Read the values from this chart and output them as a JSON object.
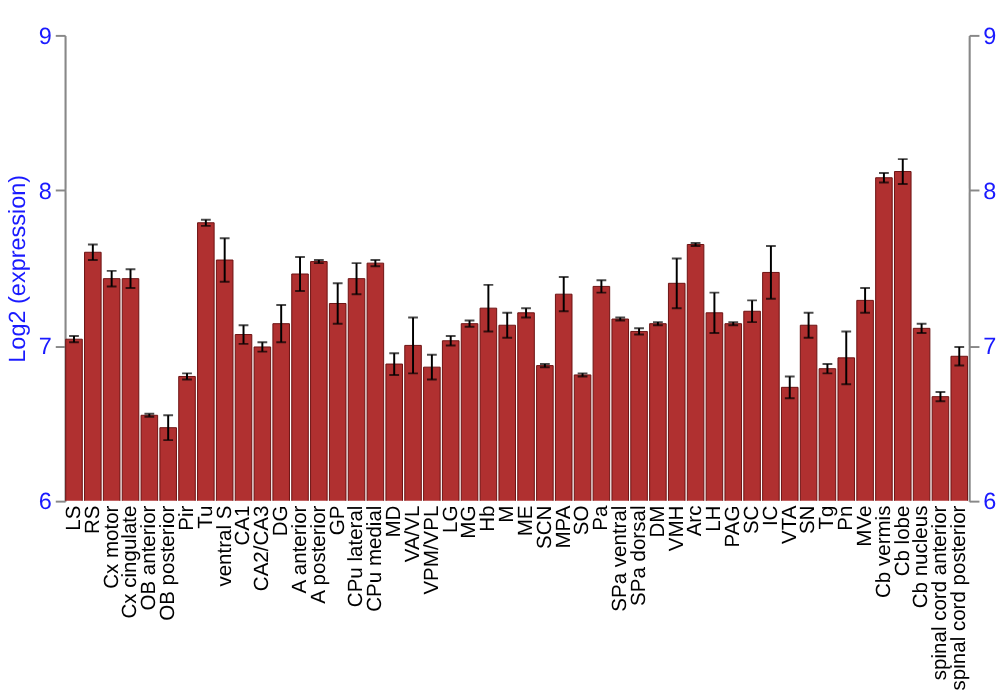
{
  "chart_data": {
    "type": "bar",
    "ylabel": "Log2 (expression)",
    "categories": [
      "LS",
      "RS",
      "Cx motor",
      "Cx cingulate",
      "OB anterior",
      "OB posterior",
      "Pir",
      "Tu",
      "ventral S",
      "CA1",
      "CA2/CA3",
      "DG",
      "A anterior",
      "A posterior",
      "GP",
      "CPu lateral",
      "CPu medial",
      "MD",
      "VA/VL",
      "VPM/VPL",
      "LG",
      "MG",
      "Hb",
      "M",
      "ME",
      "SCN",
      "MPA",
      "SO",
      "Pa",
      "SPa ventral",
      "SPa dorsal",
      "DM",
      "VMH",
      "Arc",
      "LH",
      "PAG",
      "SC",
      "IC",
      "VTA",
      "SN",
      "Tg",
      "Pn",
      "MVe",
      "Cb vermis",
      "Cb lobe",
      "Cb nucleus",
      "spinal cord anterior",
      "spinal cord posterior"
    ],
    "values": [
      7.04,
      7.6,
      7.43,
      7.43,
      6.55,
      6.47,
      6.8,
      7.79,
      7.55,
      7.07,
      6.99,
      7.14,
      7.46,
      7.54,
      7.27,
      7.43,
      7.53,
      6.88,
      7.0,
      6.86,
      7.03,
      7.14,
      7.24,
      7.13,
      7.21,
      6.87,
      7.33,
      6.81,
      7.38,
      7.17,
      7.09,
      7.14,
      7.4,
      7.65,
      7.21,
      7.14,
      7.22,
      7.47,
      6.73,
      7.13,
      6.85,
      6.92,
      7.29,
      8.08,
      8.12,
      7.11,
      6.67,
      6.93
    ],
    "errors": [
      0.02,
      0.05,
      0.05,
      0.06,
      0.01,
      0.08,
      0.02,
      0.02,
      0.14,
      0.06,
      0.03,
      0.12,
      0.11,
      0.01,
      0.13,
      0.1,
      0.02,
      0.07,
      0.18,
      0.08,
      0.03,
      0.02,
      0.15,
      0.08,
      0.03,
      0.01,
      0.11,
      0.01,
      0.04,
      0.01,
      0.02,
      0.01,
      0.16,
      0.01,
      0.13,
      0.01,
      0.07,
      0.17,
      0.07,
      0.08,
      0.03,
      0.17,
      0.08,
      0.03,
      0.08,
      0.03,
      0.03,
      0.06
    ],
    "color": "#b03030",
    "ylim": [
      6,
      9
    ],
    "yticks": [
      6,
      7,
      8,
      9
    ],
    "y2lim": [
      6,
      9
    ],
    "y2ticks": [
      6,
      7,
      8,
      9
    ],
    "grid": "y"
  }
}
